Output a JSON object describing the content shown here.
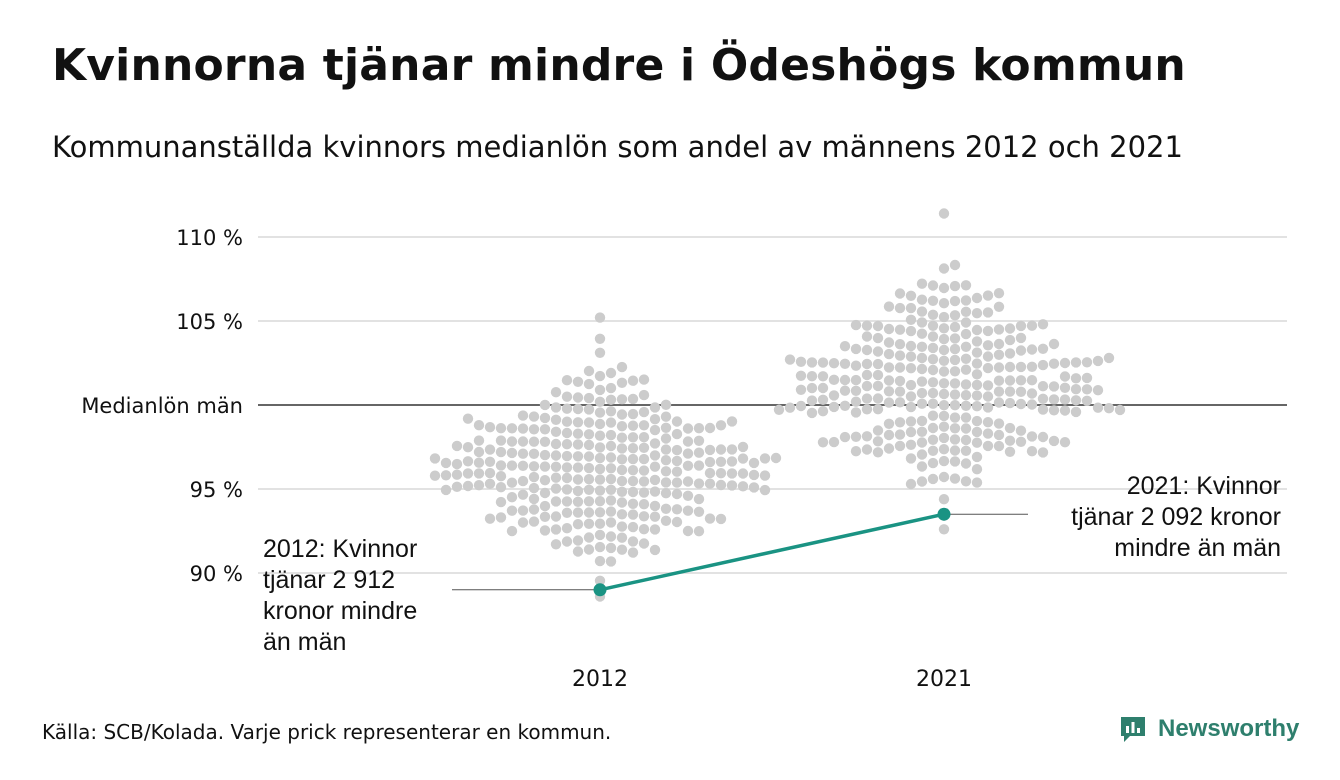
{
  "title": "Kvinnorna tjänar mindre i Ödeshögs kommun",
  "subtitle": "Kommunanställda kvinnors medianlön som andel av männens 2012 och 2021",
  "source": "Källa: SCB/Kolada. Varje prick representerar en kommun.",
  "brand": "Newsworthy",
  "colors": {
    "dots": "#cccccc",
    "highlight": "#1a9383",
    "grid": "#e2e2e2",
    "reference": "#333333",
    "brand": "#2e7f6d"
  },
  "chart_data": {
    "type": "scatter",
    "title": "Kvinnorna tjänar mindre i Ödeshögs kommun",
    "subtitle": "Kommunanställda kvinnors medianlön som andel av männens 2012 och 2021",
    "categories": [
      "2012",
      "2021"
    ],
    "ylim": [
      86.5,
      111.5
    ],
    "y_ticks": [
      {
        "value": 90,
        "label": "90 %"
      },
      {
        "value": 95,
        "label": "95 %"
      },
      {
        "value": 100,
        "label": "Medianlön män"
      },
      {
        "value": 105,
        "label": "105 %"
      },
      {
        "value": 110,
        "label": "110 %"
      }
    ],
    "reference_line": {
      "value": 100,
      "label": "Medianlön män"
    },
    "distributions": [
      {
        "category": "2012",
        "center": 96.2,
        "spread": 2.6,
        "min": 88.6,
        "max": 105.2,
        "count": 290
      },
      {
        "category": "2021",
        "center": 101.3,
        "spread": 2.9,
        "min": 92.6,
        "max": 111.4,
        "count": 290
      }
    ],
    "highlight": {
      "name": "Ödeshög",
      "points": [
        {
          "x": "2012",
          "y": 89.0
        },
        {
          "x": "2021",
          "y": 93.5
        }
      ]
    },
    "annotations": [
      {
        "x": "2012",
        "lines": [
          "2012: Kvinnor",
          "tjänar 2 912",
          "kronor mindre",
          "än män"
        ]
      },
      {
        "x": "2021",
        "lines": [
          "2021: Kvinnor",
          "tjänar 2 092 kronor",
          "mindre än män"
        ]
      }
    ],
    "grid": true
  }
}
